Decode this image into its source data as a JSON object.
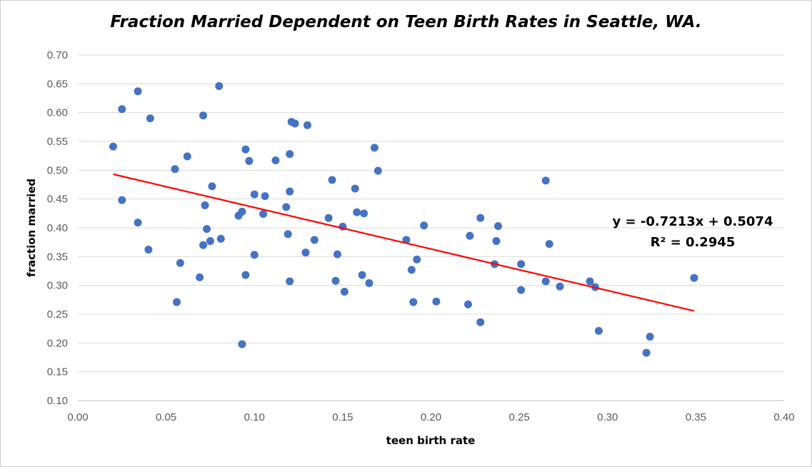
{
  "chart_data": {
    "type": "scatter",
    "title": "Fraction Married Dependent  on Teen Birth Rates in Seattle, WA.",
    "xlabel": "teen birth rate",
    "ylabel": "fraction married",
    "xlim": [
      0.0,
      0.4
    ],
    "ylim": [
      0.1,
      0.7
    ],
    "x_ticks": [
      "0.00",
      "0.05",
      "0.10",
      "0.15",
      "0.20",
      "0.25",
      "0.30",
      "0.35",
      "0.40"
    ],
    "y_ticks": [
      "0.10",
      "0.15",
      "0.20",
      "0.25",
      "0.30",
      "0.35",
      "0.40",
      "0.45",
      "0.50",
      "0.55",
      "0.60",
      "0.65",
      "0.70"
    ],
    "grid": "horizontal",
    "marker_color": "#4472C4",
    "trendline_color": "#FF0000",
    "trendline": {
      "slope": -0.7213,
      "intercept": 0.5074,
      "x_range": [
        0.02,
        0.349
      ]
    },
    "equation_label": "y = -0.7213x + 0.5074",
    "r2_label": "R² = 0.2945",
    "points": [
      [
        0.02,
        0.541
      ],
      [
        0.025,
        0.606
      ],
      [
        0.025,
        0.448
      ],
      [
        0.034,
        0.637
      ],
      [
        0.034,
        0.409
      ],
      [
        0.04,
        0.362
      ],
      [
        0.041,
        0.59
      ],
      [
        0.055,
        0.502
      ],
      [
        0.056,
        0.271
      ],
      [
        0.058,
        0.339
      ],
      [
        0.062,
        0.524
      ],
      [
        0.069,
        0.314
      ],
      [
        0.071,
        0.595
      ],
      [
        0.071,
        0.37
      ],
      [
        0.072,
        0.439
      ],
      [
        0.073,
        0.398
      ],
      [
        0.075,
        0.377
      ],
      [
        0.076,
        0.472
      ],
      [
        0.08,
        0.646
      ],
      [
        0.081,
        0.381
      ],
      [
        0.091,
        0.421
      ],
      [
        0.093,
        0.428
      ],
      [
        0.093,
        0.198
      ],
      [
        0.095,
        0.536
      ],
      [
        0.095,
        0.318
      ],
      [
        0.097,
        0.516
      ],
      [
        0.1,
        0.458
      ],
      [
        0.1,
        0.353
      ],
      [
        0.105,
        0.424
      ],
      [
        0.106,
        0.455
      ],
      [
        0.112,
        0.517
      ],
      [
        0.118,
        0.436
      ],
      [
        0.119,
        0.389
      ],
      [
        0.12,
        0.463
      ],
      [
        0.12,
        0.528
      ],
      [
        0.12,
        0.307
      ],
      [
        0.121,
        0.584
      ],
      [
        0.123,
        0.581
      ],
      [
        0.129,
        0.357
      ],
      [
        0.13,
        0.578
      ],
      [
        0.134,
        0.379
      ],
      [
        0.142,
        0.417
      ],
      [
        0.144,
        0.483
      ],
      [
        0.146,
        0.308
      ],
      [
        0.147,
        0.354
      ],
      [
        0.15,
        0.402
      ],
      [
        0.151,
        0.289
      ],
      [
        0.157,
        0.468
      ],
      [
        0.158,
        0.427
      ],
      [
        0.161,
        0.318
      ],
      [
        0.162,
        0.425
      ],
      [
        0.165,
        0.304
      ],
      [
        0.168,
        0.539
      ],
      [
        0.17,
        0.499
      ],
      [
        0.186,
        0.379
      ],
      [
        0.189,
        0.327
      ],
      [
        0.19,
        0.271
      ],
      [
        0.192,
        0.345
      ],
      [
        0.196,
        0.404
      ],
      [
        0.203,
        0.272
      ],
      [
        0.221,
        0.267
      ],
      [
        0.222,
        0.386
      ],
      [
        0.228,
        0.417
      ],
      [
        0.228,
        0.236
      ],
      [
        0.236,
        0.337
      ],
      [
        0.237,
        0.377
      ],
      [
        0.238,
        0.403
      ],
      [
        0.251,
        0.337
      ],
      [
        0.251,
        0.292
      ],
      [
        0.265,
        0.482
      ],
      [
        0.265,
        0.307
      ],
      [
        0.267,
        0.372
      ],
      [
        0.273,
        0.298
      ],
      [
        0.29,
        0.307
      ],
      [
        0.293,
        0.297
      ],
      [
        0.295,
        0.221
      ],
      [
        0.322,
        0.183
      ],
      [
        0.324,
        0.211
      ],
      [
        0.349,
        0.313
      ]
    ]
  }
}
